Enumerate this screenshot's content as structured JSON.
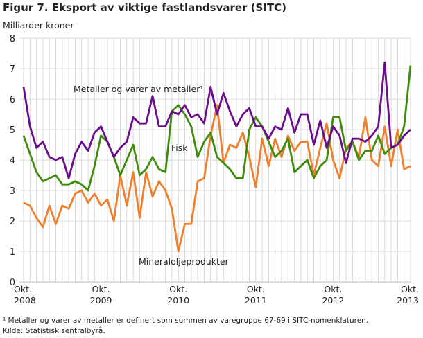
{
  "title": "Figur 7. Eksport av viktige fastlandsvarer (SITC)",
  "footnote": "¹ Metaller og varer av metaller er definert som summen av varegruppe 67-69 i SITC-nomenklaturen.",
  "source": "Kilde: Statistisk sentralbyrå.",
  "chart_data": {
    "type": "line",
    "title": "Figur 7. Eksport av viktige fastlandsvarer (SITC)",
    "ylabel": "Milliarder kroner",
    "ylim": [
      0,
      8
    ],
    "yticks": [
      0,
      1,
      2,
      3,
      4,
      5,
      6,
      7,
      8
    ],
    "x_start": "2008-10",
    "x_end": "2013-10",
    "x_frequency": "monthly",
    "xtick_labels": [
      [
        "Okt.",
        "2008"
      ],
      [
        "Okt.",
        "2009"
      ],
      [
        "Okt.",
        "2010"
      ],
      [
        "Okt.",
        "2011"
      ],
      [
        "Okt.",
        "2012"
      ],
      [
        "Okt.",
        "2013"
      ]
    ],
    "grid": true,
    "series": [
      {
        "name": "Metaller og varer av metaller¹",
        "color": "#6b0d8c",
        "values": [
          6.4,
          5.1,
          4.4,
          4.6,
          4.1,
          4.0,
          4.1,
          3.4,
          4.2,
          4.6,
          4.3,
          4.9,
          5.1,
          4.6,
          4.1,
          4.4,
          4.6,
          5.4,
          5.2,
          5.2,
          6.1,
          5.1,
          5.1,
          5.6,
          5.5,
          5.8,
          5.4,
          5.5,
          5.2,
          6.4,
          5.5,
          6.2,
          5.6,
          5.1,
          5.5,
          5.7,
          5.1,
          5.1,
          4.7,
          5.1,
          5.0,
          5.7,
          4.9,
          5.5,
          5.5,
          4.5,
          5.3,
          4.4,
          5.1,
          4.8,
          3.9,
          4.7,
          4.7,
          4.6,
          4.8,
          5.1,
          7.2,
          4.4,
          4.5,
          4.8,
          5.0
        ]
      },
      {
        "name": "Fisk",
        "color": "#3f8c0c",
        "values": [
          4.8,
          4.2,
          3.6,
          3.3,
          3.4,
          3.5,
          3.2,
          3.2,
          3.3,
          3.2,
          3.0,
          3.8,
          4.8,
          4.6,
          4.1,
          3.5,
          4.0,
          4.5,
          3.5,
          3.7,
          4.1,
          3.7,
          3.6,
          5.6,
          5.8,
          5.5,
          5.1,
          4.1,
          4.6,
          4.9,
          4.1,
          3.9,
          3.7,
          3.4,
          3.4,
          5.0,
          5.4,
          5.1,
          4.6,
          4.1,
          4.3,
          4.7,
          3.6,
          3.8,
          4.0,
          3.4,
          3.8,
          4.0,
          5.4,
          5.4,
          4.3,
          4.6,
          4.0,
          4.3,
          4.3,
          4.8,
          4.2,
          4.4,
          4.5,
          5.1,
          7.1
        ]
      },
      {
        "name": "Mineraloljeprodukter",
        "color": "#f07f2c",
        "values": [
          2.6,
          2.5,
          2.1,
          1.8,
          2.5,
          1.9,
          2.5,
          2.4,
          2.9,
          3.0,
          2.6,
          2.9,
          2.5,
          2.7,
          2.0,
          3.5,
          2.5,
          3.6,
          2.1,
          3.6,
          2.8,
          3.3,
          3.0,
          2.4,
          1.0,
          1.9,
          1.9,
          3.3,
          3.4,
          4.8,
          5.8,
          3.9,
          4.5,
          4.4,
          4.9,
          4.1,
          3.1,
          4.7,
          3.8,
          4.7,
          4.1,
          4.8,
          4.3,
          4.6,
          4.6,
          3.5,
          4.4,
          5.2,
          4.0,
          3.4,
          4.4,
          4.6,
          4.1,
          5.4,
          4.0,
          3.8,
          5.1,
          3.8,
          5.0,
          3.7,
          3.8
        ]
      }
    ]
  }
}
